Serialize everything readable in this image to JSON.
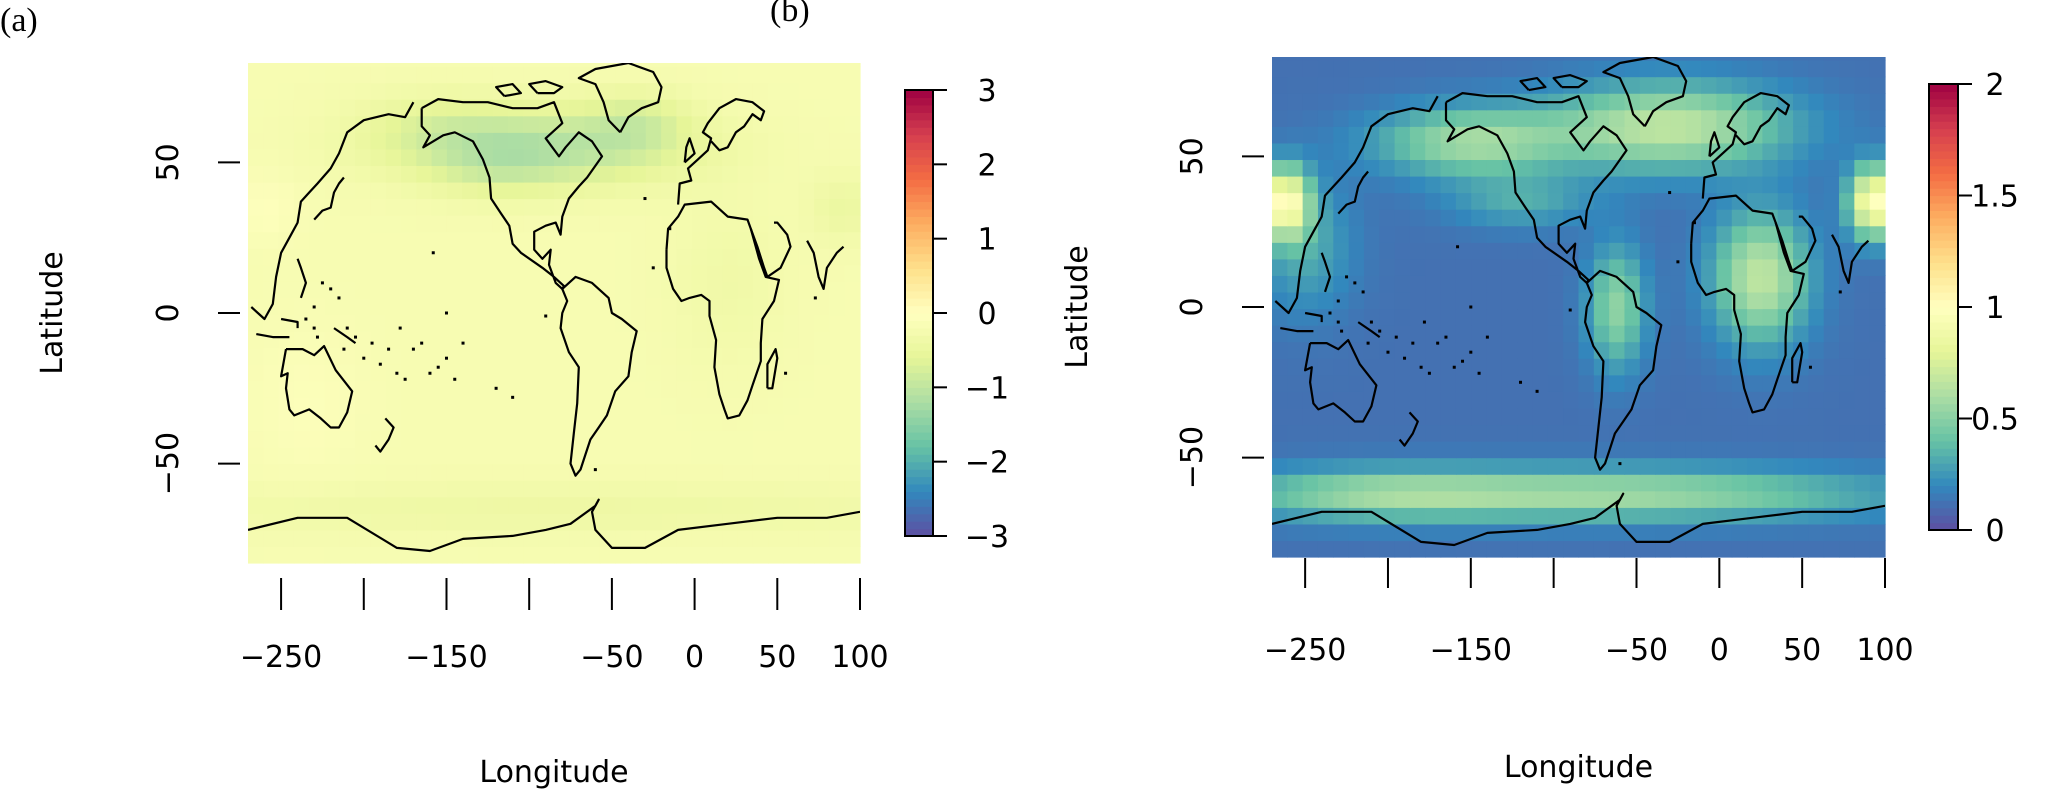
{
  "panels": {
    "a": {
      "label": "(a)"
    },
    "b": {
      "label": "(b)"
    }
  },
  "chart_data": [
    {
      "type": "heatmap",
      "panel": "(a)",
      "xlabel": "Longitude",
      "ylabel": "Latitude",
      "xlim": [
        -270,
        100
      ],
      "ylim": [
        -83,
        83
      ],
      "xticks": [
        -250,
        -200,
        -150,
        -100,
        -50,
        0,
        50,
        100
      ],
      "xtick_labels": [
        "-250",
        "",
        "-150",
        "",
        "-50",
        "0",
        "50",
        "100"
      ],
      "yticks": [
        -50,
        0,
        50
      ],
      "colorbar": {
        "min": -3,
        "max": 3,
        "ticks": [
          3,
          2,
          1,
          0,
          -1,
          -2,
          -3
        ],
        "tick_labels": [
          "3",
          "2",
          "1",
          "0",
          "−1",
          "−2",
          "−3"
        ]
      },
      "colormap": "Spectral",
      "base_value": -0.2,
      "features": [
        {
          "lon": -90,
          "lat": 55,
          "sx": 60,
          "sy": 9,
          "amp": -0.85
        },
        {
          "lon": -35,
          "lat": 64,
          "sx": 22,
          "sy": 7,
          "amp": -0.4
        },
        {
          "lon": -155,
          "lat": 62,
          "sx": 35,
          "sy": 8,
          "amp": -0.3
        },
        {
          "lon": -120,
          "lat": 48,
          "sx": 28,
          "sy": 7,
          "amp": -0.25
        },
        {
          "lon": 20,
          "lat": 10,
          "sx": 25,
          "sy": 20,
          "amp": -0.15
        },
        {
          "lon": -235,
          "lat": -30,
          "sx": 25,
          "sy": 18,
          "amp": 0.12
        },
        {
          "lon": -260,
          "lat": 35,
          "sx": 15,
          "sy": 8,
          "amp": 0.15
        },
        {
          "lon": 90,
          "lat": 35,
          "sx": 15,
          "sy": 8,
          "amp": -0.25
        },
        {
          "lon": -85,
          "lat": -65,
          "sx": 200,
          "sy": 6,
          "amp": -0.2
        }
      ]
    },
    {
      "type": "heatmap",
      "panel": "(b)",
      "xlabel": "Longitude",
      "ylabel": "Latitude",
      "xlim": [
        -270,
        100
      ],
      "ylim": [
        -83,
        83
      ],
      "xticks": [
        -250,
        -200,
        -150,
        -100,
        -50,
        0,
        50,
        100
      ],
      "xtick_labels": [
        "-250",
        "",
        "-150",
        "",
        "-50",
        "0",
        "50",
        "100"
      ],
      "yticks": [
        -50,
        0,
        50
      ],
      "colorbar": {
        "min": 0,
        "max": 2,
        "ticks": [
          2,
          1.5,
          1,
          0.5,
          0
        ],
        "tick_labels": [
          "2",
          "1.5",
          "1",
          "0.5",
          "0"
        ]
      },
      "colormap": "Spectral",
      "base_value": 0.12,
      "features": [
        {
          "lon": -30,
          "lat": 60,
          "sx": 50,
          "sy": 10,
          "amp": 0.55
        },
        {
          "lon": -150,
          "lat": 55,
          "sx": 40,
          "sy": 8,
          "amp": 0.45
        },
        {
          "lon": -60,
          "lat": -62,
          "sx": 110,
          "sy": 6,
          "amp": 0.45
        },
        {
          "lon": -210,
          "lat": -62,
          "sx": 60,
          "sy": 6,
          "amp": 0.3
        },
        {
          "lon": 25,
          "lat": 10,
          "sx": 20,
          "sy": 15,
          "amp": 0.55
        },
        {
          "lon": -62,
          "lat": 0,
          "sx": 12,
          "sy": 14,
          "amp": 0.4
        },
        {
          "lon": -262,
          "lat": 35,
          "sx": 10,
          "sy": 8,
          "amp": 0.85
        },
        {
          "lon": 93,
          "lat": 35,
          "sx": 10,
          "sy": 8,
          "amp": 0.9
        },
        {
          "lon": -120,
          "lat": 35,
          "sx": 30,
          "sy": 6,
          "amp": 0.2
        },
        {
          "lon": -250,
          "lat": 20,
          "sx": 20,
          "sy": 15,
          "amp": 0.2
        }
      ]
    }
  ]
}
